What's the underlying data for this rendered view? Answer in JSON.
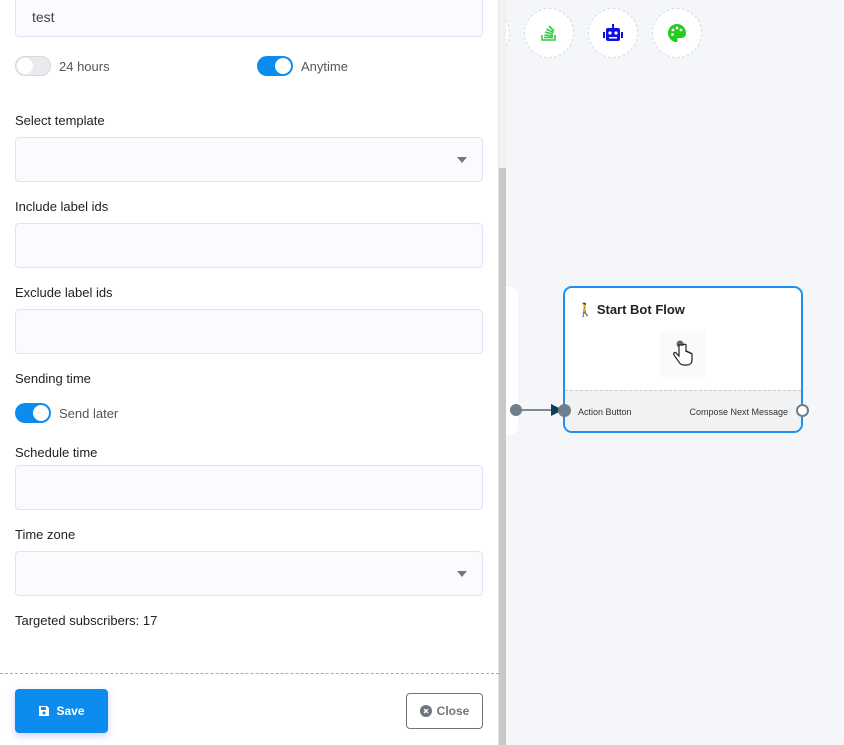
{
  "form": {
    "name_value": "test",
    "toggle_24h": {
      "label": "24 hours",
      "on": false
    },
    "toggle_anytime": {
      "label": "Anytime",
      "on": true
    },
    "select_template_label": "Select template",
    "include_label": "Include label ids",
    "exclude_label": "Exclude label ids",
    "sending_time_label": "Sending time",
    "send_later": {
      "label": "Send later",
      "on": true
    },
    "schedule_label": "Schedule time",
    "timezone_label": "Time zone",
    "targeted": "Targeted subscribers: 17",
    "save_label": "Save",
    "close_label": "Close"
  },
  "canvas": {
    "toolbar_icons": [
      "stack-overflow-icon",
      "robot-icon",
      "palette-icon"
    ],
    "node": {
      "title": "Start Bot Flow",
      "input_label": "Action Button",
      "output_label": "Compose Next Message"
    }
  },
  "colors": {
    "primary": "#0d8cf0",
    "node_border": "#1e90ef"
  }
}
